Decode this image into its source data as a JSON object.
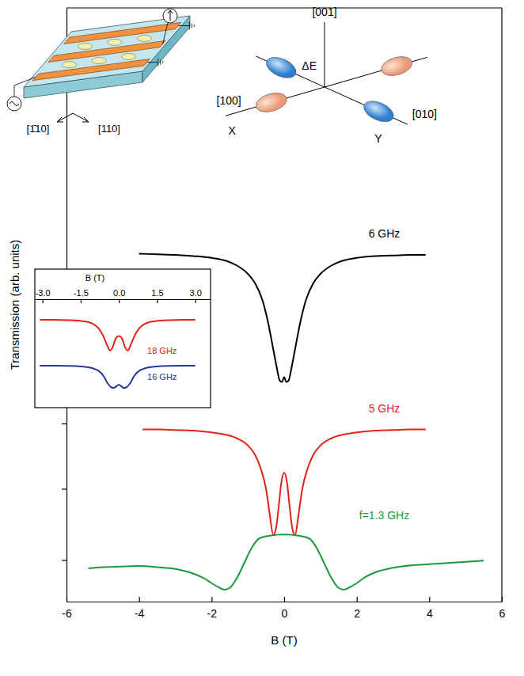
{
  "chart_data": [
    {
      "type": "line",
      "xlabel": "B (T)",
      "ylabel": "Transmission (arb. units)",
      "xlim": [
        -6,
        6
      ],
      "xticks": [
        -6,
        -4,
        -2,
        0,
        2,
        4,
        6
      ],
      "ylim": [
        0,
        10
      ],
      "yticks": [
        0.7,
        1.9,
        3.0,
        4.3,
        5.4
      ],
      "tick_labels": "x",
      "series": [
        {
          "name": "6 GHz",
          "color": "#000000",
          "x": [
            -4.0,
            -3.5,
            -3.0,
            -2.5,
            -2.0,
            -1.6,
            -1.3,
            -1.0,
            -0.8,
            -0.6,
            -0.45,
            -0.3,
            -0.2,
            -0.12,
            -0.06,
            0,
            0.06,
            0.12,
            0.2,
            0.3,
            0.45,
            0.6,
            0.8,
            1.0,
            1.3,
            1.6,
            2.0,
            2.5,
            3.0,
            3.5,
            3.9
          ],
          "values": [
            5.86,
            5.85,
            5.84,
            5.82,
            5.79,
            5.74,
            5.66,
            5.52,
            5.36,
            5.08,
            4.72,
            4.25,
            3.93,
            3.72,
            3.7,
            3.78,
            3.7,
            3.72,
            3.93,
            4.25,
            4.72,
            5.08,
            5.36,
            5.52,
            5.66,
            5.74,
            5.79,
            5.82,
            5.83,
            5.84,
            5.84
          ]
        },
        {
          "name": "5 GHz",
          "color": "#e2231a",
          "x": [
            -3.9,
            -3.5,
            -3.0,
            -2.5,
            -2.0,
            -1.6,
            -1.3,
            -1.0,
            -0.8,
            -0.65,
            -0.5,
            -0.4,
            -0.3,
            -0.22,
            -0.15,
            -0.08,
            0,
            0.08,
            0.15,
            0.22,
            0.3,
            0.4,
            0.5,
            0.65,
            0.8,
            1.0,
            1.3,
            1.6,
            2.0,
            2.5,
            3.0,
            3.5,
            3.9
          ],
          "values": [
            2.9,
            2.9,
            2.89,
            2.88,
            2.85,
            2.81,
            2.75,
            2.63,
            2.47,
            2.25,
            1.9,
            1.48,
            1.12,
            1.25,
            1.6,
            2.0,
            2.17,
            2.0,
            1.6,
            1.25,
            1.12,
            1.48,
            1.9,
            2.25,
            2.47,
            2.63,
            2.75,
            2.81,
            2.85,
            2.88,
            2.89,
            2.9,
            2.9
          ]
        },
        {
          "name": "f=1.3 GHz",
          "color": "#1a9b3a",
          "x": [
            -5.4,
            -5.0,
            -4.5,
            -4.0,
            -3.5,
            -3.0,
            -2.5,
            -2.2,
            -2.0,
            -1.8,
            -1.65,
            -1.5,
            -1.3,
            -1.1,
            -0.9,
            -0.7,
            -0.4,
            0,
            0.4,
            0.7,
            0.9,
            1.1,
            1.3,
            1.5,
            1.65,
            1.8,
            2.0,
            2.2,
            2.5,
            3.0,
            3.5,
            4.0,
            4.5,
            5.0,
            5.5
          ],
          "values": [
            0.56,
            0.58,
            0.59,
            0.6,
            0.58,
            0.55,
            0.47,
            0.39,
            0.31,
            0.24,
            0.2,
            0.23,
            0.4,
            0.65,
            0.9,
            1.06,
            1.11,
            1.13,
            1.11,
            1.06,
            0.9,
            0.65,
            0.4,
            0.23,
            0.2,
            0.24,
            0.31,
            0.4,
            0.49,
            0.57,
            0.61,
            0.63,
            0.65,
            0.67,
            0.69
          ]
        }
      ]
    },
    {
      "type": "line",
      "xlabel": "B (T)",
      "xlim": [
        -3.3,
        3.6
      ],
      "xticks": [
        {
          "value": -3,
          "label": "-3.0"
        },
        -1.5,
        {
          "value": 0,
          "label": "0.0"
        },
        1.5,
        {
          "value": 3,
          "label": "3.0"
        }
      ],
      "ylim": [
        0,
        10
      ],
      "yticks": [],
      "tick_labels": "x",
      "series": [
        {
          "name": "18 GHz",
          "color": "#e2231a",
          "x": [
            -3.1,
            -2.5,
            -2.0,
            -1.5,
            -1.2,
            -1.0,
            -0.8,
            -0.6,
            -0.45,
            -0.35,
            -0.25,
            -0.12,
            0,
            0.12,
            0.25,
            0.35,
            0.45,
            0.6,
            0.8,
            1.0,
            1.2,
            1.5,
            2.0,
            2.5,
            3.0
          ],
          "values": [
            8.1,
            8.1,
            8.07,
            8.0,
            7.89,
            7.7,
            7.32,
            6.54,
            5.69,
            5.26,
            5.54,
            6.4,
            6.6,
            6.4,
            5.54,
            5.26,
            5.69,
            6.54,
            7.32,
            7.7,
            7.89,
            8.0,
            8.07,
            8.1,
            8.1
          ]
        },
        {
          "name": "16 GHz",
          "color": "#26379a",
          "x": [
            -3.1,
            -2.5,
            -2.0,
            -1.5,
            -1.2,
            -1.0,
            -0.8,
            -0.6,
            -0.45,
            -0.3,
            -0.2,
            -0.1,
            0,
            0.1,
            0.2,
            0.3,
            0.45,
            0.6,
            0.8,
            1.0,
            1.2,
            1.5,
            2.0,
            2.5,
            3.0
          ],
          "values": [
            3.87,
            3.87,
            3.85,
            3.8,
            3.72,
            3.61,
            3.4,
            2.92,
            2.28,
            1.88,
            1.82,
            1.96,
            2.12,
            1.96,
            1.82,
            1.88,
            2.28,
            2.92,
            3.4,
            3.61,
            3.72,
            3.8,
            3.85,
            3.87,
            3.87
          ]
        }
      ]
    }
  ],
  "device": {
    "labels": [
      "[1̄10]",
      "[110]"
    ]
  },
  "orbitals": {
    "labels": [
      "[001]",
      "[100]",
      "X",
      "ΔE",
      "[010]",
      "Y"
    ]
  }
}
